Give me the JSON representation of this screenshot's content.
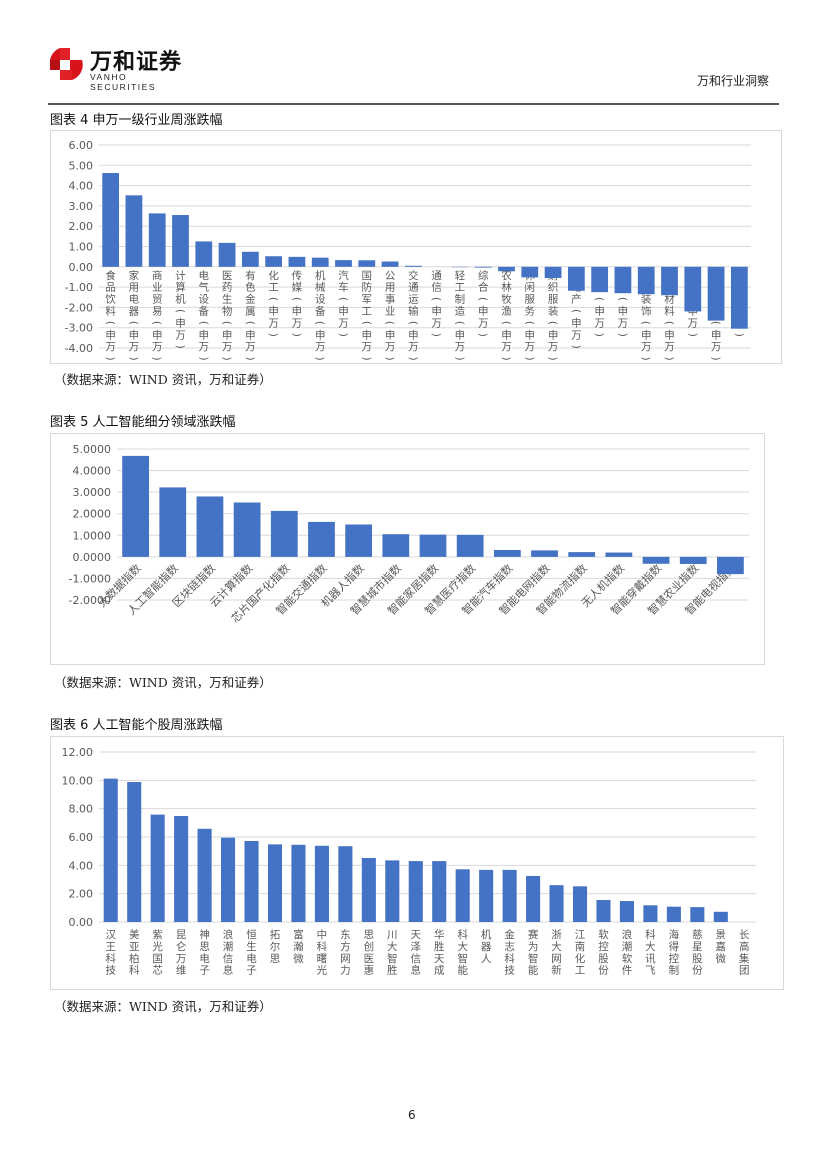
{
  "header": {
    "logo_cn": "万和证券",
    "logo_en": "VANHO SECURITIES",
    "right_title": "万和行业洞察"
  },
  "figures": [
    {
      "title": "图表 4 申万一级行业周涨跌幅",
      "source": "（数据来源：WIND 资讯，万和证券）"
    },
    {
      "title": "图表 5 人工智能细分领域涨跌幅",
      "source": "（数据来源：WIND 资讯，万和证券）"
    },
    {
      "title": "图表 6 人工智能个股周涨跌幅",
      "source": "（数据来源：WIND 资讯，万和证券）"
    }
  ],
  "page_number": "6",
  "colors": {
    "bar": "#4472c4",
    "grid": "#d9d9d9",
    "axis_text": "#595959"
  },
  "chart_data": [
    {
      "type": "bar",
      "title": "申万一级行业周涨跌幅",
      "xlabel": "",
      "ylabel": "",
      "ylim": [
        -4.0,
        6.0
      ],
      "yticks": [
        "6.00",
        "5.00",
        "4.00",
        "3.00",
        "2.00",
        "1.00",
        "0.00",
        "-1.00",
        "-2.00",
        "-3.00",
        "-4.00"
      ],
      "grid": true,
      "label_orientation": "vertical",
      "categories": [
        "食品饮料(申万)",
        "家用电器(申万)",
        "商业贸易(申万)",
        "计算机(申万)",
        "电气设备(申万)",
        "医药生物(申万)",
        "有色金属(申万)",
        "化工(申万)",
        "传媒(申万)",
        "机械设备(申万)",
        "汽车(申万)",
        "国防军工(申万)",
        "公用事业(申万)",
        "交通运输(申万)",
        "通信(申万)",
        "轻工制造(申万)",
        "综合(申万)",
        "农林牧渔(申万)",
        "休闲服务(申万)",
        "纺织服装(申万)",
        "房地产(申万)",
        "电子(申万)",
        "采掘(申万)",
        "建筑装饰(申万)",
        "建筑材料(申万)",
        "银行(申万)",
        "非银金融(申万)",
        "煤炭(申万)"
      ],
      "values": [
        4.62,
        3.52,
        2.63,
        2.55,
        1.25,
        1.18,
        0.74,
        0.52,
        0.49,
        0.45,
        0.33,
        0.32,
        0.26,
        0.05,
        0.0,
        -0.02,
        -0.04,
        -0.22,
        -0.52,
        -0.55,
        -1.18,
        -1.25,
        -1.3,
        -1.35,
        -1.4,
        -2.2,
        -2.65,
        -3.05
      ]
    },
    {
      "type": "bar",
      "title": "人工智能细分领域涨跌幅",
      "xlabel": "",
      "ylabel": "",
      "ylim": [
        -2.0,
        5.0
      ],
      "yticks": [
        "5.0000",
        "4.0000",
        "3.0000",
        "2.0000",
        "1.0000",
        "0.0000",
        "-1.0000",
        "-2.0000"
      ],
      "grid": true,
      "label_orientation": "rotated-45",
      "categories": [
        "大数据指数",
        "人工智能指数",
        "区块链指数",
        "云计算指数",
        "芯片国产化指数",
        "智能交通指数",
        "机器人指数",
        "智慧城市指数",
        "智能家居指数",
        "智慧医疗指数",
        "智能汽车指数",
        "智能电网指数",
        "智能物流指数",
        "无人机指数",
        "智能穿戴指数",
        "智慧农业指数",
        "智能电视指数"
      ],
      "values": [
        4.68,
        3.22,
        2.8,
        2.52,
        2.13,
        1.62,
        1.5,
        1.05,
        1.03,
        1.02,
        0.32,
        0.3,
        0.22,
        0.2,
        -0.32,
        -0.33,
        -0.8
      ]
    },
    {
      "type": "bar",
      "title": "人工智能个股周涨跌幅",
      "xlabel": "",
      "ylabel": "",
      "ylim": [
        0.0,
        12.0
      ],
      "yticks": [
        "12.00",
        "10.00",
        "8.00",
        "6.00",
        "4.00",
        "2.00",
        "0.00"
      ],
      "grid": true,
      "label_orientation": "vertical",
      "categories": [
        "汉王科技",
        "美亚柏科",
        "紫光国芯",
        "昆仑万维",
        "神思电子",
        "浪潮信息",
        "恒生电子",
        "拓尔思",
        "富瀚微",
        "中科曙光",
        "东方网力",
        "思创医惠",
        "川大智胜",
        "天泽信息",
        "华胜天成",
        "科大智能",
        "机器人",
        "金志科技",
        "赛为智能",
        "浙大网新",
        "江南化工",
        "软控股份",
        "浪潮软件",
        "科大讯飞",
        "海得控制",
        "慈星股份",
        "景嘉微",
        "长高集团"
      ],
      "values": [
        10.12,
        9.88,
        7.58,
        7.48,
        6.58,
        5.95,
        5.72,
        5.48,
        5.45,
        5.38,
        5.35,
        4.52,
        4.35,
        4.3,
        4.3,
        3.72,
        3.68,
        3.68,
        3.25,
        2.6,
        2.52,
        1.55,
        1.48,
        1.18,
        1.08,
        1.05,
        0.72,
        0.0
      ]
    }
  ]
}
